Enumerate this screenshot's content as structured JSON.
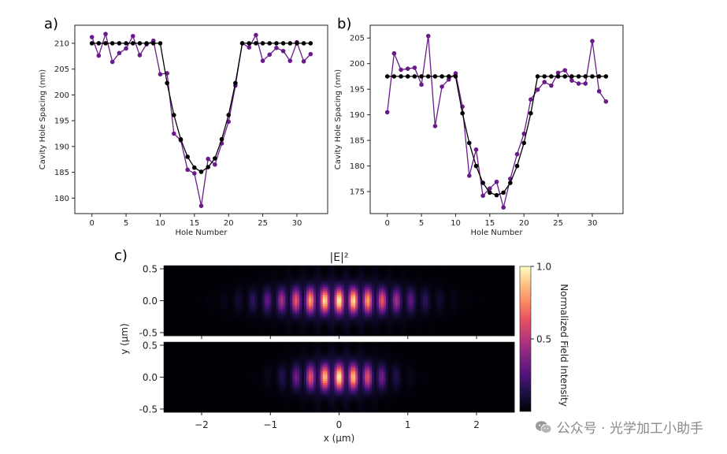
{
  "panels": {
    "a": "a)",
    "b": "b)",
    "c": "c)"
  },
  "chart_data": [
    {
      "type": "line",
      "panel": "a)",
      "xlabel": "Hole Number",
      "ylabel": "Cavity Hole Spacing (nm)",
      "xlim": [
        -2.5,
        34.5
      ],
      "ylim": [
        177,
        213.5
      ],
      "xticks": [
        0,
        5,
        10,
        15,
        20,
        25,
        30
      ],
      "yticks": [
        180,
        185,
        190,
        195,
        200,
        205,
        210
      ],
      "x": [
        0,
        1,
        2,
        3,
        4,
        5,
        6,
        7,
        8,
        9,
        10,
        11,
        12,
        13,
        14,
        15,
        16,
        17,
        18,
        19,
        20,
        21,
        22,
        23,
        24,
        25,
        26,
        27,
        28,
        29,
        30,
        31,
        32
      ],
      "series": [
        {
          "color": "#6a1b8a",
          "values": [
            211.2,
            207.6,
            211.8,
            206.4,
            208.1,
            209.0,
            211.4,
            207.7,
            209.8,
            210.5,
            204.0,
            204.2,
            192.5,
            191.2,
            185.5,
            184.8,
            178.5,
            187.6,
            186.5,
            190.6,
            194.8,
            201.8,
            210.0,
            209.2,
            211.6,
            206.6,
            207.8,
            209.1,
            208.5,
            206.6,
            210.2,
            206.5,
            207.9
          ]
        },
        {
          "color": "#000000",
          "values": [
            210,
            210,
            210,
            210,
            210,
            210,
            210,
            210,
            210,
            210,
            210,
            202.3,
            196.1,
            191.4,
            188.0,
            185.9,
            185.1,
            186.0,
            187.7,
            191.4,
            196.1,
            202.3,
            210,
            210,
            210,
            210,
            210,
            210,
            210,
            210,
            210,
            210,
            210
          ]
        }
      ]
    },
    {
      "type": "line",
      "panel": "b)",
      "xlabel": "Hole Number",
      "ylabel": "Cavity Hole Spacing (nm)",
      "xlim": [
        -2.5,
        34.5
      ],
      "ylim": [
        170.7,
        207.5
      ],
      "xticks": [
        0,
        5,
        10,
        15,
        20,
        25,
        30
      ],
      "yticks": [
        175,
        180,
        185,
        190,
        195,
        200,
        205
      ],
      "x": [
        0,
        1,
        2,
        3,
        4,
        5,
        6,
        7,
        8,
        9,
        10,
        11,
        12,
        13,
        14,
        15,
        16,
        17,
        18,
        19,
        20,
        21,
        22,
        23,
        24,
        25,
        26,
        27,
        28,
        29,
        30,
        31,
        32
      ],
      "series": [
        {
          "color": "#6a1b8a",
          "values": [
            190.5,
            202.0,
            198.8,
            199.0,
            199.2,
            195.9,
            205.4,
            187.8,
            195.5,
            196.9,
            198.1,
            191.6,
            178.1,
            183.2,
            174.2,
            175.6,
            176.9,
            171.9,
            177.5,
            182.3,
            186.3,
            193.0,
            194.9,
            196.4,
            195.7,
            198.2,
            198.7,
            196.7,
            196.1,
            196.1,
            204.4,
            194.6,
            192.6
          ]
        },
        {
          "color": "#000000",
          "values": [
            197.5,
            197.5,
            197.5,
            197.5,
            197.5,
            197.5,
            197.5,
            197.5,
            197.5,
            197.5,
            197.5,
            190.3,
            184.5,
            180.0,
            176.7,
            174.8,
            174.3,
            174.8,
            176.7,
            180.0,
            184.5,
            190.3,
            197.5,
            197.5,
            197.5,
            197.5,
            197.5,
            197.5,
            197.5,
            197.5,
            197.5,
            197.5,
            197.5
          ]
        }
      ]
    },
    {
      "type": "heatmap",
      "panel": "c)",
      "title": "|E|²",
      "xlabel": "x (μm)",
      "ylabel": "y (μm)",
      "xlim": [
        -2.55,
        2.55
      ],
      "ylim": [
        -0.55,
        0.55
      ],
      "xticks": [
        -2,
        -1,
        0,
        1,
        2
      ],
      "yticks": [
        -0.5,
        0.0,
        0.5
      ],
      "colorbar": {
        "label": "Normalized Field Intensity",
        "ticks": [
          0.5,
          1.0
        ],
        "colormap": "magma",
        "range": [
          0,
          1
        ]
      },
      "maps": [
        {
          "peak_x": 0.0,
          "envelope_sigma_x": 0.95,
          "lattice_period_um": 0.21,
          "mode_sigma_y": 0.2
        },
        {
          "peak_x": 0.0,
          "envelope_sigma_x": 0.6,
          "lattice_period_um": 0.21,
          "mode_sigma_y": 0.2
        }
      ]
    }
  ],
  "watermark": {
    "text": "公众号 · 光学加工小助手"
  }
}
